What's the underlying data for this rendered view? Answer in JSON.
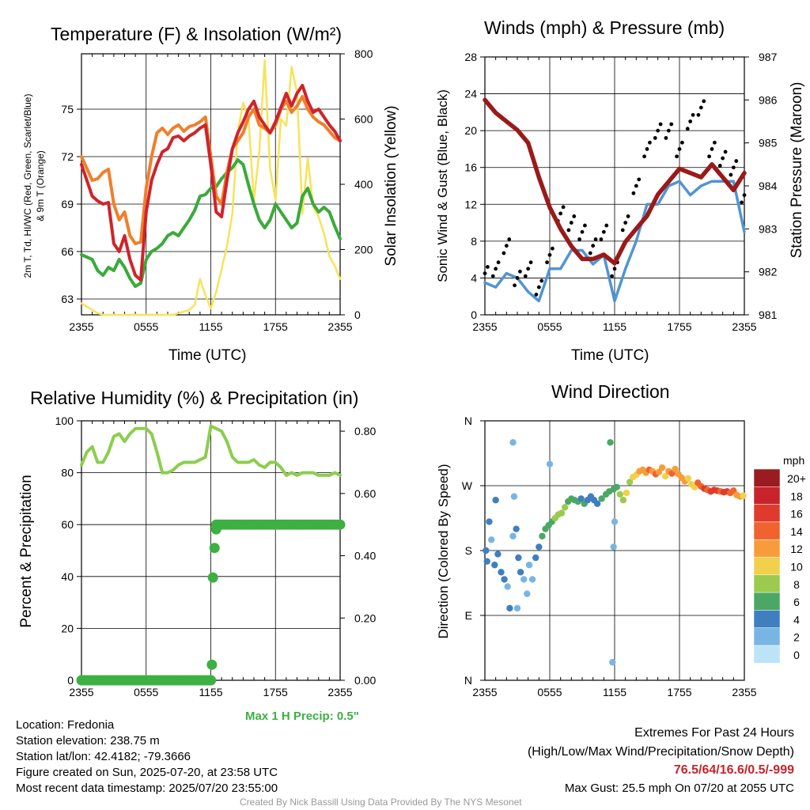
{
  "panels": {
    "temp": {
      "title": "Temperature (F) & Insolation (W/m²)",
      "ylabel_left_l1": "2m T, Td, HI/WC (Red, Green, Scarlet/Blue)",
      "ylabel_left_l2": "& 9m T (Orange)",
      "ylabel_right": "Solar Insolation (Yellow)",
      "xlabel": "Time (UTC)"
    },
    "wind": {
      "title": "Winds (mph) & Pressure (mb)",
      "ylabel_left": "Sonic Wind & Gust (Blue, Black)",
      "ylabel_right": "Station Pressure (Maroon)",
      "xlabel": "Time (UTC)"
    },
    "rh": {
      "title": "Relative Humidity (%) & Precipitation (in)",
      "ylabel_left": "Percent & Precipitation",
      "max_precip": "Max 1 H Precip: 0.5\""
    },
    "dir": {
      "title": "Wind Direction",
      "ylabel_left": "Direction (Colored By Speed)",
      "legend_title": "mph",
      "legend_labels": [
        "20+",
        "18",
        "16",
        "14",
        "12",
        "10",
        "8",
        "6",
        "4",
        "2",
        "0"
      ],
      "legend_colors": [
        "#9b1c20",
        "#c8232b",
        "#e03a2c",
        "#f0632e",
        "#f89c3a",
        "#f0d04c",
        "#9acb4e",
        "#4aa864",
        "#3f7fc0",
        "#78b5e4",
        "#bde3f7"
      ]
    }
  },
  "colors": {
    "temp": "#d0232a",
    "dewpoint": "#3aaa3a",
    "t9m": "#f07f2a",
    "solar": "#f7e35a",
    "wind": "#4f95d4",
    "gust": "#000000",
    "pressure": "#9a1a1a",
    "rh": "#8ccd4e",
    "precip": "#3cb043"
  },
  "footer": {
    "location": "Location: Fredonia",
    "elevation": "Station elevation: 238.75 m",
    "latlon": "Station lat/lon: 42.4182; -79.3666",
    "created": "Figure created on Sun, 2025-07-20, at 23:58 UTC",
    "recent": "Most recent data timestamp: 2025/07/20 23:55:00",
    "extremes_title": "Extremes For Past 24 Hours",
    "extremes_desc": "(High/Low/Max Wind/Precipitation/Snow Depth)",
    "extremes_values": "76.5/64/16.6/0.5/-999",
    "max_gust": "Max Gust: 25.5 mph On 07/20 at 2055 UTC",
    "credit": "Created By Nick Bassill Using Data Provided By The NYS Mesonet"
  },
  "chart_data": [
    {
      "type": "line",
      "title": "Temperature (F) & Insolation (W/m²)",
      "xlabel": "Time (UTC)",
      "x_ticks": [
        "2355",
        "0555",
        "1155",
        "1755",
        "2355"
      ],
      "ylim": [
        62,
        78.5
      ],
      "y_ticks": [
        63,
        66,
        69,
        72,
        75
      ],
      "y2lim": [
        0,
        800
      ],
      "y2_ticks": [
        0,
        200,
        400,
        600,
        800
      ],
      "hours": [
        0,
        1,
        1.5,
        2,
        2.5,
        3,
        3.5,
        4,
        4.5,
        5,
        5.5,
        6,
        6.5,
        7,
        7.5,
        8,
        8.5,
        9,
        9.5,
        10,
        10.5,
        11,
        11.5,
        12,
        12.5,
        13,
        13.5,
        14,
        14.5,
        15,
        15.5,
        16,
        16.5,
        17,
        17.5,
        18,
        18.5,
        19,
        19.5,
        20,
        20.5,
        21,
        21.5,
        22,
        22.5,
        23,
        23.5,
        24
      ],
      "series": [
        {
          "name": "2m T",
          "axis": "left",
          "values": [
            71.5,
            69.5,
            69.2,
            69.0,
            69.1,
            66.5,
            66.0,
            67.0,
            65.5,
            64.5,
            64.2,
            68.5,
            70.5,
            71.5,
            72.3,
            72.5,
            73.2,
            73.3,
            73.0,
            73.3,
            73.5,
            73.8,
            74.0,
            71.5,
            68.5,
            68.2,
            70.5,
            72.5,
            73.5,
            74.2,
            75.0,
            75.5,
            74.5,
            74.0,
            73.5,
            74.2,
            75.1,
            76.0,
            75.2,
            76.0,
            76.5,
            75.5,
            74.8,
            75.0,
            74.5,
            74.0,
            73.6,
            73.0
          ]
        },
        {
          "name": "9m T",
          "axis": "left",
          "values": [
            72.0,
            70.5,
            70.6,
            71.0,
            71.2,
            69.0,
            68.0,
            68.5,
            67.0,
            66.5,
            66.6,
            70.0,
            72.0,
            73.5,
            73.8,
            73.4,
            73.8,
            74.0,
            73.6,
            73.9,
            74.0,
            74.2,
            74.5,
            72.0,
            69.5,
            69.0,
            71.0,
            72.5,
            73.0,
            73.5,
            74.5,
            75.0,
            74.0,
            73.8,
            73.5,
            74.0,
            75.0,
            75.5,
            74.8,
            75.2,
            75.8,
            75.0,
            74.5,
            74.2,
            74.0,
            73.6,
            73.2,
            73.0
          ]
        },
        {
          "name": "Td",
          "axis": "left",
          "values": [
            65.8,
            65.5,
            64.8,
            64.5,
            65.0,
            64.8,
            65.5,
            65.0,
            64.3,
            63.8,
            64.0,
            65.5,
            66.0,
            66.2,
            66.5,
            67.0,
            67.2,
            67.0,
            67.5,
            68.0,
            68.6,
            69.5,
            69.6,
            70.0,
            70.1,
            70.6,
            71.0,
            71.3,
            71.8,
            71.5,
            70.2,
            69.0,
            68.0,
            67.5,
            68.0,
            69.0,
            68.5,
            68.0,
            67.5,
            67.8,
            69.5,
            70.0,
            69.0,
            68.5,
            68.8,
            68.5,
            67.6,
            66.8
          ]
        },
        {
          "name": "Solar",
          "axis": "right",
          "values": [
            35,
            15,
            5,
            0,
            0,
            0,
            0,
            0,
            0,
            0,
            0,
            0,
            0,
            0,
            0,
            0,
            0,
            5,
            10,
            15,
            30,
            110,
            60,
            20,
            70,
            140,
            210,
            310,
            560,
            650,
            600,
            350,
            500,
            780,
            450,
            350,
            600,
            580,
            760,
            680,
            310,
            480,
            330,
            300,
            250,
            180,
            150,
            110
          ]
        }
      ]
    },
    {
      "type": "line",
      "title": "Winds (mph) & Pressure (mb)",
      "xlabel": "Time (UTC)",
      "x_ticks": [
        "2355",
        "0555",
        "1155",
        "1755",
        "2355"
      ],
      "ylim": [
        0,
        28
      ],
      "y_ticks": [
        0,
        4,
        8,
        12,
        16,
        20,
        24,
        28
      ],
      "y2lim": [
        981,
        987
      ],
      "y2_ticks": [
        981,
        982,
        983,
        984,
        985,
        986,
        987
      ],
      "hours": [
        0,
        1,
        2,
        3,
        4,
        5,
        6,
        7,
        8,
        9,
        10,
        11,
        12,
        13,
        14,
        15,
        16,
        17,
        18,
        19,
        20,
        21,
        22,
        23,
        24
      ],
      "series": [
        {
          "name": "Sonic Wind",
          "axis": "left",
          "values": [
            3.5,
            3,
            4.5,
            4,
            2.5,
            1.5,
            5,
            5,
            7,
            7,
            5.5,
            6.5,
            1.5,
            5,
            8,
            12,
            12,
            14,
            14.5,
            13,
            14,
            14.5,
            14.5,
            14.5,
            9
          ]
        },
        {
          "name": "Gust",
          "axis": "left",
          "values": [
            4.5,
            5,
            7.5,
            4,
            5,
            3,
            6.5,
            11,
            10,
            9,
            7.5,
            9,
            5,
            10,
            14,
            18,
            20,
            20,
            18,
            21,
            22.5,
            18,
            17,
            16,
            13
          ]
        },
        {
          "name": "Station Pressure",
          "axis": "right",
          "values": [
            986.0,
            985.7,
            985.5,
            985.3,
            985.0,
            984.2,
            983.5,
            983.0,
            982.6,
            982.3,
            982.3,
            982.4,
            982.2,
            982.7,
            983.0,
            983.3,
            983.8,
            984.1,
            984.4,
            984.3,
            984.2,
            984.5,
            984.2,
            983.9,
            984.3
          ]
        }
      ]
    },
    {
      "type": "line",
      "title": "Relative Humidity (%) & Precipitation (in)",
      "x_ticks": [
        "2355",
        "0555",
        "1155",
        "1755",
        "2355"
      ],
      "ylim": [
        0,
        100
      ],
      "y_ticks": [
        0,
        20,
        40,
        60,
        80,
        100
      ],
      "y2lim": [
        0,
        0.8333
      ],
      "y2_ticks": [
        "0.00",
        "0.20",
        "0.40",
        "0.60",
        "0.80"
      ],
      "hours": [
        0,
        0.5,
        1,
        1.5,
        2,
        2.5,
        3,
        3.5,
        4,
        4.5,
        5,
        5.5,
        6,
        6.5,
        7,
        7.5,
        8,
        8.5,
        9,
        9.5,
        10,
        10.5,
        11,
        11.5,
        12,
        12.5,
        13,
        13.5,
        14,
        14.5,
        15,
        15.5,
        16,
        16.5,
        17,
        17.5,
        18,
        18.5,
        19,
        19.5,
        20,
        20.5,
        21,
        21.5,
        22,
        22.5,
        23,
        23.5,
        24
      ],
      "series": [
        {
          "name": "Relative Humidity",
          "axis": "left",
          "values": [
            83,
            88,
            90,
            84,
            84,
            88,
            94,
            95,
            92,
            95,
            97,
            97,
            97,
            95,
            88,
            80,
            80,
            81,
            83,
            84,
            84,
            84,
            85,
            86,
            98,
            97,
            96,
            92,
            86,
            84,
            84,
            84,
            85,
            83,
            82,
            84,
            84,
            82,
            79,
            80,
            79,
            80,
            80,
            80,
            79,
            79,
            79,
            80,
            79
          ]
        },
        {
          "name": "Precipitation",
          "axis": "right",
          "points": [
            [
              0,
              0
            ],
            [
              12,
              0
            ],
            [
              12.1,
              0.05
            ],
            [
              12.2,
              0.33
            ],
            [
              12.35,
              0.425
            ],
            [
              12.5,
              0.485
            ],
            [
              13,
              0.5
            ],
            [
              24,
              0.5
            ]
          ]
        }
      ]
    },
    {
      "type": "scatter",
      "title": "Wind Direction",
      "x_ticks": [
        "2355",
        "0555",
        "1155",
        "1755",
        "2355"
      ],
      "y_ticks": [
        "N",
        "E",
        "S",
        "W",
        "N"
      ],
      "ylim": [
        0,
        360
      ],
      "points": [
        [
          0.1,
          180,
          4
        ],
        [
          0.2,
          165,
          3
        ],
        [
          0.4,
          220,
          3
        ],
        [
          0.6,
          195,
          2
        ],
        [
          0.9,
          160,
          4
        ],
        [
          1.2,
          175,
          3
        ],
        [
          1.5,
          150,
          4
        ],
        [
          1.8,
          140,
          4
        ],
        [
          2.1,
          130,
          2
        ],
        [
          2.3,
          100,
          3
        ],
        [
          2.6,
          200,
          2
        ],
        [
          2.9,
          210,
          3
        ],
        [
          3.1,
          170,
          3
        ],
        [
          3.3,
          150,
          3
        ],
        [
          3.6,
          140,
          2
        ],
        [
          3.9,
          120,
          2
        ],
        [
          4.1,
          160,
          2
        ],
        [
          4.4,
          140,
          2
        ],
        [
          4.7,
          170,
          3
        ],
        [
          5.0,
          185,
          4
        ],
        [
          5.3,
          200,
          5
        ],
        [
          5.6,
          210,
          6
        ],
        [
          5.9,
          215,
          6
        ],
        [
          6.2,
          220,
          6
        ],
        [
          6.5,
          225,
          7
        ],
        [
          6.8,
          230,
          7
        ],
        [
          7.1,
          232,
          8
        ],
        [
          7.4,
          240,
          7
        ],
        [
          7.7,
          248,
          6
        ],
        [
          8.0,
          252,
          6
        ],
        [
          8.3,
          250,
          5
        ],
        [
          8.6,
          248,
          6
        ],
        [
          8.9,
          252,
          4
        ],
        [
          9.2,
          245,
          5
        ],
        [
          9.5,
          250,
          4
        ],
        [
          9.8,
          255,
          4
        ],
        [
          10.1,
          250,
          4
        ],
        [
          10.4,
          245,
          4
        ],
        [
          10.8,
          252,
          5
        ],
        [
          11.2,
          258,
          6
        ],
        [
          11.5,
          262,
          5
        ],
        [
          11.9,
          265,
          6
        ],
        [
          12.2,
          268,
          5
        ],
        [
          12.5,
          258,
          7
        ],
        [
          12.8,
          250,
          8
        ],
        [
          13.1,
          260,
          9
        ],
        [
          13.4,
          275,
          8
        ],
        [
          13.7,
          282,
          9
        ],
        [
          14.0,
          285,
          10
        ],
        [
          14.3,
          290,
          11
        ],
        [
          14.6,
          292,
          12
        ],
        [
          14.9,
          288,
          12
        ],
        [
          15.2,
          292,
          13
        ],
        [
          15.5,
          290,
          12
        ],
        [
          15.8,
          286,
          13
        ],
        [
          16.1,
          289,
          12
        ],
        [
          16.4,
          295,
          11
        ],
        [
          16.7,
          283,
          10
        ],
        [
          17.0,
          290,
          12
        ],
        [
          17.3,
          287,
          13
        ],
        [
          17.6,
          293,
          12
        ],
        [
          17.9,
          286,
          11
        ],
        [
          18.2,
          281,
          12
        ],
        [
          18.5,
          276,
          11
        ],
        [
          18.8,
          280,
          10
        ],
        [
          19.1,
          272,
          9
        ],
        [
          19.4,
          268,
          10
        ],
        [
          19.7,
          274,
          13
        ],
        [
          20.0,
          269,
          14
        ],
        [
          20.3,
          266,
          15
        ],
        [
          20.6,
          264,
          14
        ],
        [
          20.9,
          262,
          15
        ],
        [
          21.2,
          264,
          16
        ],
        [
          21.5,
          263,
          15
        ],
        [
          21.8,
          262,
          14
        ],
        [
          22.1,
          261,
          16
        ],
        [
          22.4,
          262,
          15
        ],
        [
          22.7,
          260,
          14
        ],
        [
          23.0,
          263,
          13
        ],
        [
          23.3,
          257,
          12
        ],
        [
          23.6,
          255,
          11
        ],
        [
          23.9,
          256,
          10
        ],
        [
          2.6,
          330,
          2
        ],
        [
          2.7,
          255,
          2
        ],
        [
          3.0,
          100,
          2
        ],
        [
          11.9,
          185,
          2
        ],
        [
          11.6,
          330,
          5
        ],
        [
          11.8,
          25,
          2
        ],
        [
          12.0,
          220,
          2
        ],
        [
          6.0,
          300,
          2
        ],
        [
          1.0,
          250,
          3
        ]
      ]
    }
  ]
}
